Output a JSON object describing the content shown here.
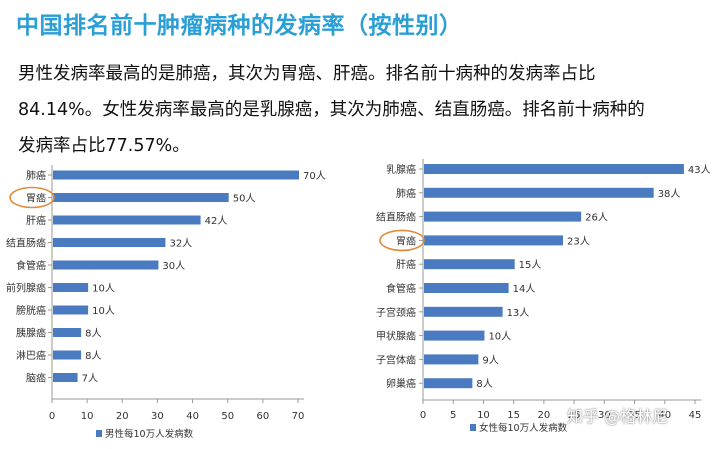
{
  "title": "中国排名前十肿瘤病种的发病率（按性别）",
  "description": [
    "男性发病率最高的是肺癌，其次为胃癌、肝癌。排名前十病种的发病率占比",
    "84.14%。女性发病率最高的是乳腺癌，其次为肺癌、结直肠癌。排名前十病种的",
    "发病率占比77.57%。"
  ],
  "watermark": "知乎 @格林尼",
  "colors": {
    "bar": "#4a7bc0",
    "title": "#2a9fd6",
    "highlight_circle": "#e08a3a",
    "axis": "#9a9a9a"
  },
  "chart_data": [
    {
      "type": "bar",
      "orientation": "horizontal",
      "categories": [
        "肺癌",
        "胃癌",
        "肝癌",
        "结直肠癌",
        "食管癌",
        "前列腺癌",
        "膀胱癌",
        "胰腺癌",
        "淋巴癌",
        "脑癌"
      ],
      "values": [
        70,
        50,
        42,
        32,
        30,
        10,
        10,
        8,
        8,
        7
      ],
      "value_labels": [
        "70人",
        "50人",
        "42人",
        "32人",
        "30人",
        "10人",
        "10人",
        "8人",
        "8人",
        "7人"
      ],
      "highlighted_category": "胃癌",
      "xlim": [
        0,
        70
      ],
      "xticks": [
        "0",
        "10",
        "20",
        "30",
        "40",
        "50",
        "60",
        "70"
      ],
      "legend": "男性每10万人发病数",
      "legend_position": "bottom-left",
      "grid": false
    },
    {
      "type": "bar",
      "orientation": "horizontal",
      "categories": [
        "乳腺癌",
        "肺癌",
        "结直肠癌",
        "胃癌",
        "肝癌",
        "食管癌",
        "子宫颈癌",
        "甲状腺癌",
        "子宫体癌",
        "卵巢癌"
      ],
      "values": [
        43,
        38,
        26,
        23,
        15,
        14,
        13,
        10,
        9,
        8
      ],
      "value_labels": [
        "43人",
        "38人",
        "26人",
        "23人",
        "15人",
        "14人",
        "13人",
        "10人",
        "9人",
        "8人"
      ],
      "highlighted_category": "胃癌",
      "xlim": [
        0,
        45
      ],
      "xticks": [
        "0",
        "5",
        "10",
        "15",
        "20",
        "25",
        "30",
        "35",
        "40",
        "45"
      ],
      "legend": "女性每10万人发病数",
      "legend_position": "bottom-left",
      "grid": false
    }
  ]
}
